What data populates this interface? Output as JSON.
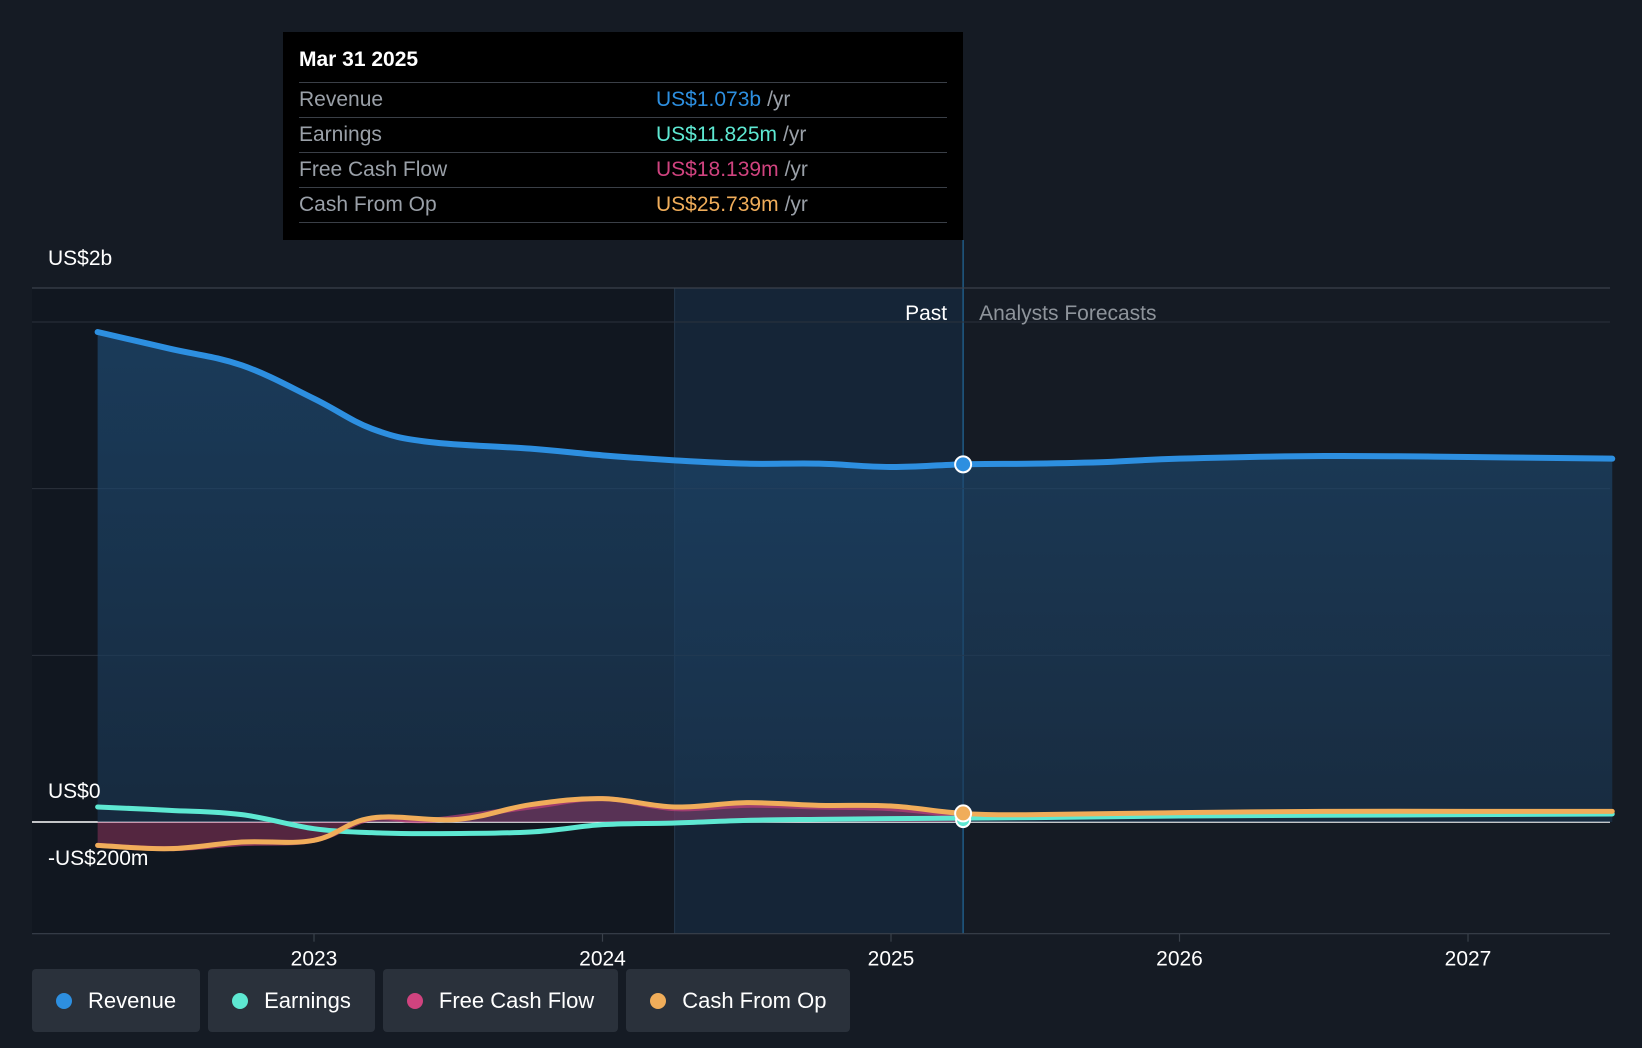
{
  "tooltip": {
    "date": "Mar 31 2025",
    "rows": [
      {
        "label": "Revenue",
        "value": "US$1.073b",
        "unit": "/yr",
        "color": "#2d8fe0"
      },
      {
        "label": "Earnings",
        "value": "US$11.825m",
        "unit": "/yr",
        "color": "#5ee8d2"
      },
      {
        "label": "Free Cash Flow",
        "value": "US$18.139m",
        "unit": "/yr",
        "color": "#d0437f"
      },
      {
        "label": "Cash From Op",
        "value": "US$25.739m",
        "unit": "/yr",
        "color": "#f0ad5a"
      }
    ]
  },
  "labels": {
    "past": "Past",
    "forecast": "Analysts Forecasts"
  },
  "legend": [
    {
      "label": "Revenue",
      "color": "#2d8fe0"
    },
    {
      "label": "Earnings",
      "color": "#5ee8d2"
    },
    {
      "label": "Free Cash Flow",
      "color": "#d0437f"
    },
    {
      "label": "Cash From Op",
      "color": "#f0ad5a"
    }
  ],
  "chart_data": {
    "type": "line",
    "y_tick_labels": [
      "US$2b",
      "US$0",
      "-US$200m"
    ],
    "x_tick_labels": [
      "2023",
      "2024",
      "2025",
      "2026",
      "2027"
    ],
    "ylim": [
      -200,
      2100
    ],
    "xlim": [
      2022.0,
      2027.5
    ],
    "past_end": 2025.25,
    "highlight_start": 2024.25,
    "marker_x": 2025.25,
    "series": [
      {
        "name": "Revenue",
        "color": "#2d8fe0",
        "fill": true,
        "points": [
          [
            2022.25,
            1470
          ],
          [
            2022.5,
            1420
          ],
          [
            2022.75,
            1370
          ],
          [
            2023.0,
            1270
          ],
          [
            2023.2,
            1180
          ],
          [
            2023.4,
            1140
          ],
          [
            2023.75,
            1120
          ],
          [
            2024.0,
            1100
          ],
          [
            2024.25,
            1085
          ],
          [
            2024.5,
            1075
          ],
          [
            2024.75,
            1075
          ],
          [
            2025.0,
            1065
          ],
          [
            2025.25,
            1073
          ],
          [
            2025.5,
            1075
          ],
          [
            2025.75,
            1080
          ],
          [
            2026.0,
            1090
          ],
          [
            2026.5,
            1098
          ],
          [
            2027.0,
            1095
          ],
          [
            2027.5,
            1090
          ]
        ]
      },
      {
        "name": "Earnings",
        "color": "#5ee8d2",
        "fill": false,
        "points": [
          [
            2022.25,
            45
          ],
          [
            2022.5,
            35
          ],
          [
            2022.75,
            22
          ],
          [
            2023.0,
            -20
          ],
          [
            2023.2,
            -32
          ],
          [
            2023.4,
            -35
          ],
          [
            2023.75,
            -30
          ],
          [
            2024.0,
            -8
          ],
          [
            2024.25,
            -3
          ],
          [
            2024.5,
            5
          ],
          [
            2024.75,
            8
          ],
          [
            2025.0,
            10
          ],
          [
            2025.25,
            11.8
          ],
          [
            2025.5,
            13
          ],
          [
            2026.0,
            18
          ],
          [
            2027.0,
            22
          ],
          [
            2027.5,
            24
          ]
        ]
      },
      {
        "name": "Free Cash Flow",
        "color": "#d0437f",
        "fill": true,
        "points": [
          [
            2022.25,
            -70
          ],
          [
            2022.5,
            -80
          ],
          [
            2022.75,
            -65
          ],
          [
            2023.0,
            -55
          ],
          [
            2023.2,
            10
          ],
          [
            2023.4,
            5
          ],
          [
            2023.75,
            45
          ],
          [
            2024.0,
            70
          ],
          [
            2024.25,
            40
          ],
          [
            2024.5,
            50
          ],
          [
            2024.75,
            45
          ],
          [
            2025.0,
            40
          ],
          [
            2025.25,
            18.1
          ]
        ]
      },
      {
        "name": "Cash From Op",
        "color": "#f0ad5a",
        "fill": false,
        "points": [
          [
            2022.25,
            -70
          ],
          [
            2022.5,
            -80
          ],
          [
            2022.75,
            -60
          ],
          [
            2023.0,
            -55
          ],
          [
            2023.2,
            12
          ],
          [
            2023.5,
            8
          ],
          [
            2023.75,
            52
          ],
          [
            2024.0,
            70
          ],
          [
            2024.25,
            45
          ],
          [
            2024.5,
            58
          ],
          [
            2024.75,
            50
          ],
          [
            2025.0,
            48
          ],
          [
            2025.25,
            25.7
          ],
          [
            2025.5,
            22
          ],
          [
            2026.0,
            28
          ],
          [
            2026.5,
            32
          ],
          [
            2027.0,
            32
          ],
          [
            2027.5,
            32
          ]
        ]
      }
    ]
  }
}
